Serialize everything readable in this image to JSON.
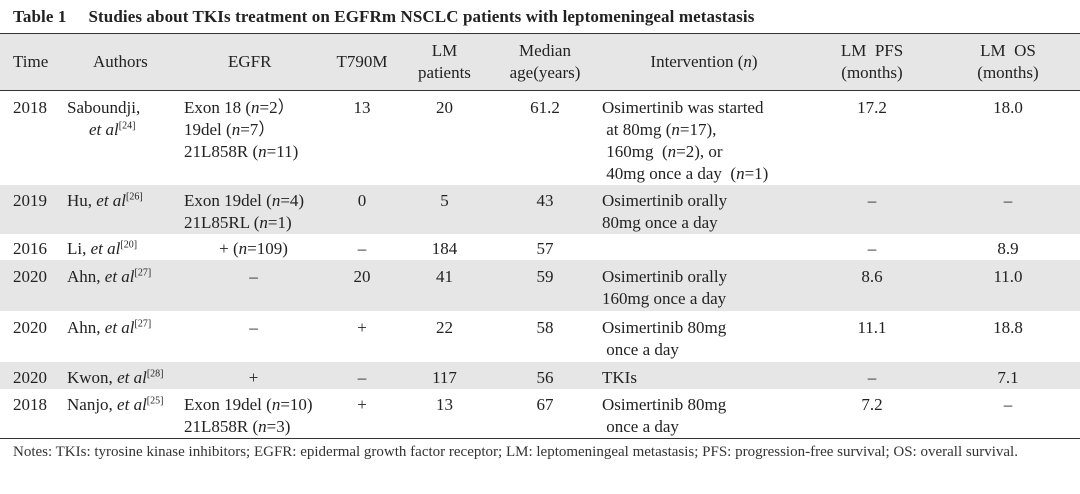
{
  "caption": {
    "number": "Table 1",
    "title": "Studies about TKIs treatment on EGFRm NSCLC patients with leptomeningeal metastasis"
  },
  "headers": {
    "time": "Time",
    "authors": "Authors",
    "egfr": "EGFR",
    "t790m": "T790M",
    "lm_patients_1": "LM",
    "lm_patients_2": "patients",
    "median_age_1": "Median",
    "median_age_2": "age(years)",
    "intervention": "Intervention (n)",
    "lm_pfs_1": "LM  PFS",
    "lm_pfs_2": "(months)",
    "lm_os_1": "LM  OS",
    "lm_os_2": "(months)"
  },
  "rows": [
    {
      "time": "2018",
      "author_1": "Saboundji,",
      "author_2": "et al",
      "ref": "[24]",
      "egfr_1": "Exon 18 (n=2）",
      "egfr_2": "19del (n=7）",
      "egfr_3": "21L858R (n=11)",
      "t790m": "13",
      "lm_patients": "20",
      "median_age": "61.2",
      "int_1": "Osimertinib was started",
      "int_2": " at 80mg (n=17),",
      "int_3": " 160mg  (n=2), or",
      "int_4": " 40mg once a day  (n=1)",
      "pfs": "17.2",
      "os": "18.0"
    },
    {
      "time": "2019",
      "author": "Hu, et al",
      "ref": "[26]",
      "egfr_1": "Exon 19del (n=4)",
      "egfr_2": "21L85RL (n=1)",
      "t790m": "0",
      "lm_patients": "5",
      "median_age": "43",
      "int_1": "Osimertinib orally",
      "int_2": "80mg once a day",
      "pfs": "–",
      "os": "–"
    },
    {
      "time": "2016",
      "author": "Li, et al",
      "ref": "[20]",
      "egfr_1": "+ (n=109)",
      "t790m": "–",
      "lm_patients": "184",
      "median_age": "57",
      "pfs": "–",
      "os": "8.9"
    },
    {
      "time": "2020",
      "author": "Ahn, et al",
      "ref": "[27]",
      "egfr_1": "–",
      "t790m": "20",
      "lm_patients": "41",
      "median_age": "59",
      "int_1": "Osimertinib orally",
      "int_2": "160mg once a day",
      "pfs": "8.6",
      "os": "11.0"
    },
    {
      "time": "2020",
      "author": "Ahn, et al",
      "ref": "[27]",
      "egfr_1": "–",
      "t790m": "+",
      "lm_patients": "22",
      "median_age": "58",
      "int_1": "Osimertinib 80mg",
      "int_2": " once a day",
      "pfs": "11.1",
      "os": "18.8"
    },
    {
      "time": "2020",
      "author": "Kwon, et al",
      "ref": "[28]",
      "egfr_1": "+",
      "t790m": "–",
      "lm_patients": "117",
      "median_age": "56",
      "int_1": "TKIs",
      "pfs": "–",
      "os": "7.1"
    },
    {
      "time": "2018",
      "author": "Nanjo, et al",
      "ref": "[25]",
      "egfr_1": "Exon 19del (n=10)",
      "egfr_2": "21L858R (n=3)",
      "t790m": "+",
      "lm_patients": "13",
      "median_age": "67",
      "int_1": "Osimertinib 80mg",
      "int_2": " once a day",
      "pfs": "7.2",
      "os": "–"
    }
  ],
  "notes": "Notes: TKIs: tyrosine kinase inhibitors; EGFR: epidermal growth factor receptor; LM: leptomeningeal metastasis; PFS: progression-free survival; OS: overall survival."
}
